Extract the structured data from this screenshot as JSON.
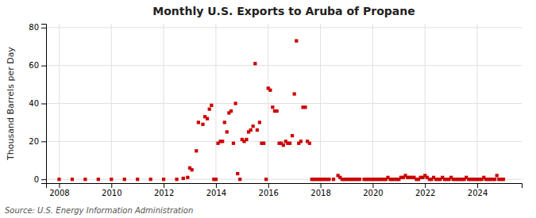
{
  "chart_data": {
    "type": "scatter",
    "title": "Monthly U.S. Exports to Aruba of Propane",
    "ylabel": "Thousand Barrels per Day",
    "source": "Source: U.S. Energy Information Administration",
    "color": "#cc0000",
    "marker": "square",
    "grid": true,
    "xlim": [
      2007.5,
      2025.7
    ],
    "ylim": [
      -2,
      82
    ],
    "xticks": [
      2008,
      2010,
      2012,
      2014,
      2016,
      2018,
      2020,
      2022,
      2024
    ],
    "yticks": [
      0,
      20,
      40,
      60,
      80
    ],
    "x": [
      2008.0,
      2008.5,
      2009.0,
      2009.5,
      2010.0,
      2010.5,
      2011.0,
      2011.5,
      2012.0,
      2012.5,
      2012.75,
      2012.92,
      2013.0,
      2013.08,
      2013.25,
      2013.33,
      2013.5,
      2013.58,
      2013.67,
      2013.75,
      2013.83,
      2013.92,
      2014.0,
      2014.08,
      2014.17,
      2014.25,
      2014.33,
      2014.42,
      2014.5,
      2014.58,
      2014.67,
      2014.75,
      2014.83,
      2014.92,
      2015.0,
      2015.08,
      2015.17,
      2015.25,
      2015.33,
      2015.42,
      2015.5,
      2015.58,
      2015.67,
      2015.75,
      2015.83,
      2015.92,
      2016.0,
      2016.08,
      2016.17,
      2016.25,
      2016.33,
      2016.42,
      2016.5,
      2016.58,
      2016.67,
      2016.75,
      2016.83,
      2016.92,
      2017.0,
      2017.08,
      2017.17,
      2017.25,
      2017.33,
      2017.42,
      2017.5,
      2017.58,
      2017.67,
      2017.75,
      2017.83,
      2017.92,
      2018.0,
      2018.08,
      2018.17,
      2018.25,
      2018.33,
      2018.5,
      2018.67,
      2018.75,
      2018.83,
      2018.92,
      2019.0,
      2019.08,
      2019.17,
      2019.25,
      2019.33,
      2019.42,
      2019.5,
      2019.67,
      2019.75,
      2019.83,
      2019.92,
      2020.0,
      2020.08,
      2020.17,
      2020.25,
      2020.33,
      2020.42,
      2020.5,
      2020.58,
      2020.67,
      2020.75,
      2020.83,
      2020.92,
      2021.0,
      2021.08,
      2021.17,
      2021.25,
      2021.33,
      2021.42,
      2021.5,
      2021.58,
      2021.67,
      2021.75,
      2021.83,
      2021.92,
      2022.0,
      2022.08,
      2022.17,
      2022.25,
      2022.33,
      2022.42,
      2022.5,
      2022.58,
      2022.67,
      2022.75,
      2022.83,
      2022.92,
      2023.0,
      2023.08,
      2023.17,
      2023.25,
      2023.33,
      2023.42,
      2023.5,
      2023.58,
      2023.67,
      2023.75,
      2023.83,
      2023.92,
      2024.0,
      2024.08,
      2024.17,
      2024.25,
      2024.33,
      2024.42,
      2024.5,
      2024.58,
      2024.67,
      2024.75,
      2024.83,
      2024.92,
      2025.0
    ],
    "values": [
      0,
      0,
      0,
      0,
      0,
      0,
      0,
      0,
      0,
      0,
      0.5,
      1.0,
      6,
      5,
      15,
      30,
      29,
      33,
      32,
      37,
      39,
      0,
      0,
      19,
      20,
      20,
      30,
      25,
      35,
      36,
      19,
      40,
      3,
      0,
      21,
      20,
      21,
      25,
      26,
      28,
      61,
      26,
      30,
      19,
      19,
      0,
      48,
      47,
      38,
      36,
      36,
      19,
      19,
      18,
      20,
      19,
      19,
      23,
      45,
      73,
      19,
      20,
      38,
      38,
      20,
      19,
      0,
      0,
      0,
      0,
      0,
      0,
      0,
      0,
      0,
      0,
      2,
      1,
      0,
      0,
      0,
      0,
      0,
      0,
      0,
      0,
      0,
      0,
      0,
      0,
      0,
      0,
      0,
      0,
      0,
      0,
      0,
      0,
      1,
      0,
      0,
      0,
      0,
      0,
      1,
      1,
      2,
      1,
      1,
      1,
      1,
      0,
      0,
      1,
      1,
      2,
      1,
      0,
      0,
      1,
      0,
      0,
      0,
      1,
      0,
      0,
      0,
      1,
      0,
      0,
      0,
      0,
      0,
      0,
      1,
      0,
      0,
      0,
      0,
      0,
      0,
      0,
      1,
      0,
      0,
      0,
      0,
      0,
      2,
      0,
      0,
      0
    ]
  }
}
